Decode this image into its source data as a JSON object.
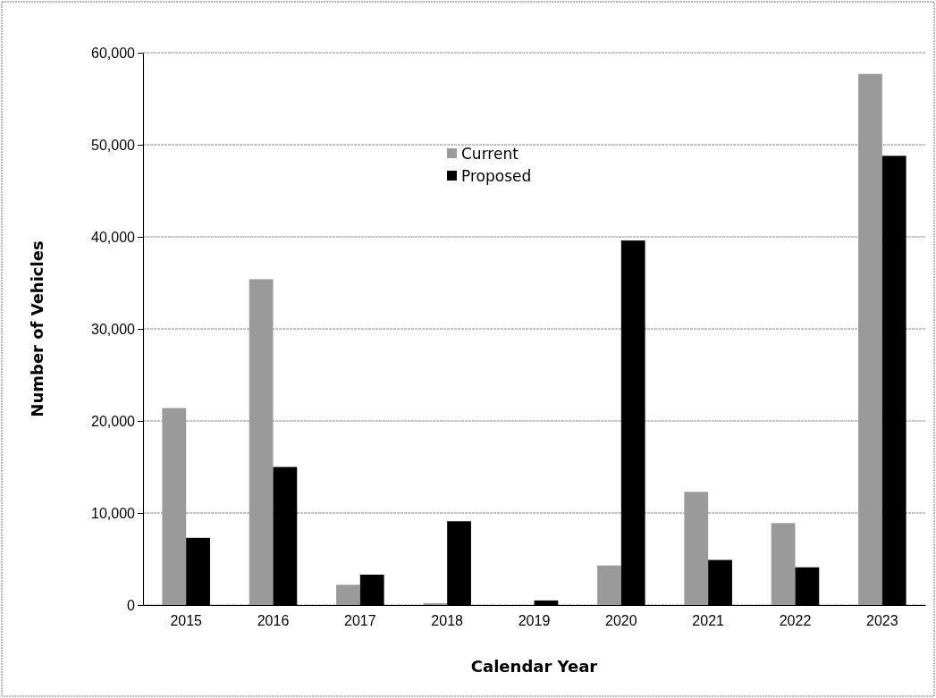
{
  "chart_data": {
    "type": "bar",
    "xlabel": "Calendar Year",
    "ylabel": "Number of Vehicles",
    "categories": [
      "2015",
      "2016",
      "2017",
      "2018",
      "2019",
      "2020",
      "2021",
      "2022",
      "2023"
    ],
    "series": [
      {
        "name": "Current",
        "color": "#9a9a9a",
        "values": [
          21400,
          35400,
          2200,
          200,
          0,
          4300,
          12300,
          8900,
          57700
        ]
      },
      {
        "name": "Proposed",
        "color": "#000000",
        "values": [
          7300,
          15000,
          3300,
          9100,
          500,
          39600,
          4900,
          4100,
          48800
        ]
      }
    ],
    "ylim": [
      0,
      60000
    ],
    "yticks": [
      {
        "value": 0,
        "label": "0"
      },
      {
        "value": 10000,
        "label": "10,000"
      },
      {
        "value": 20000,
        "label": "20,000"
      },
      {
        "value": 30000,
        "label": "30,000"
      },
      {
        "value": 40000,
        "label": "40,000"
      },
      {
        "value": 50000,
        "label": "50,000"
      },
      {
        "value": 60000,
        "label": "60,000"
      }
    ],
    "grid": "y",
    "legend": "top"
  }
}
